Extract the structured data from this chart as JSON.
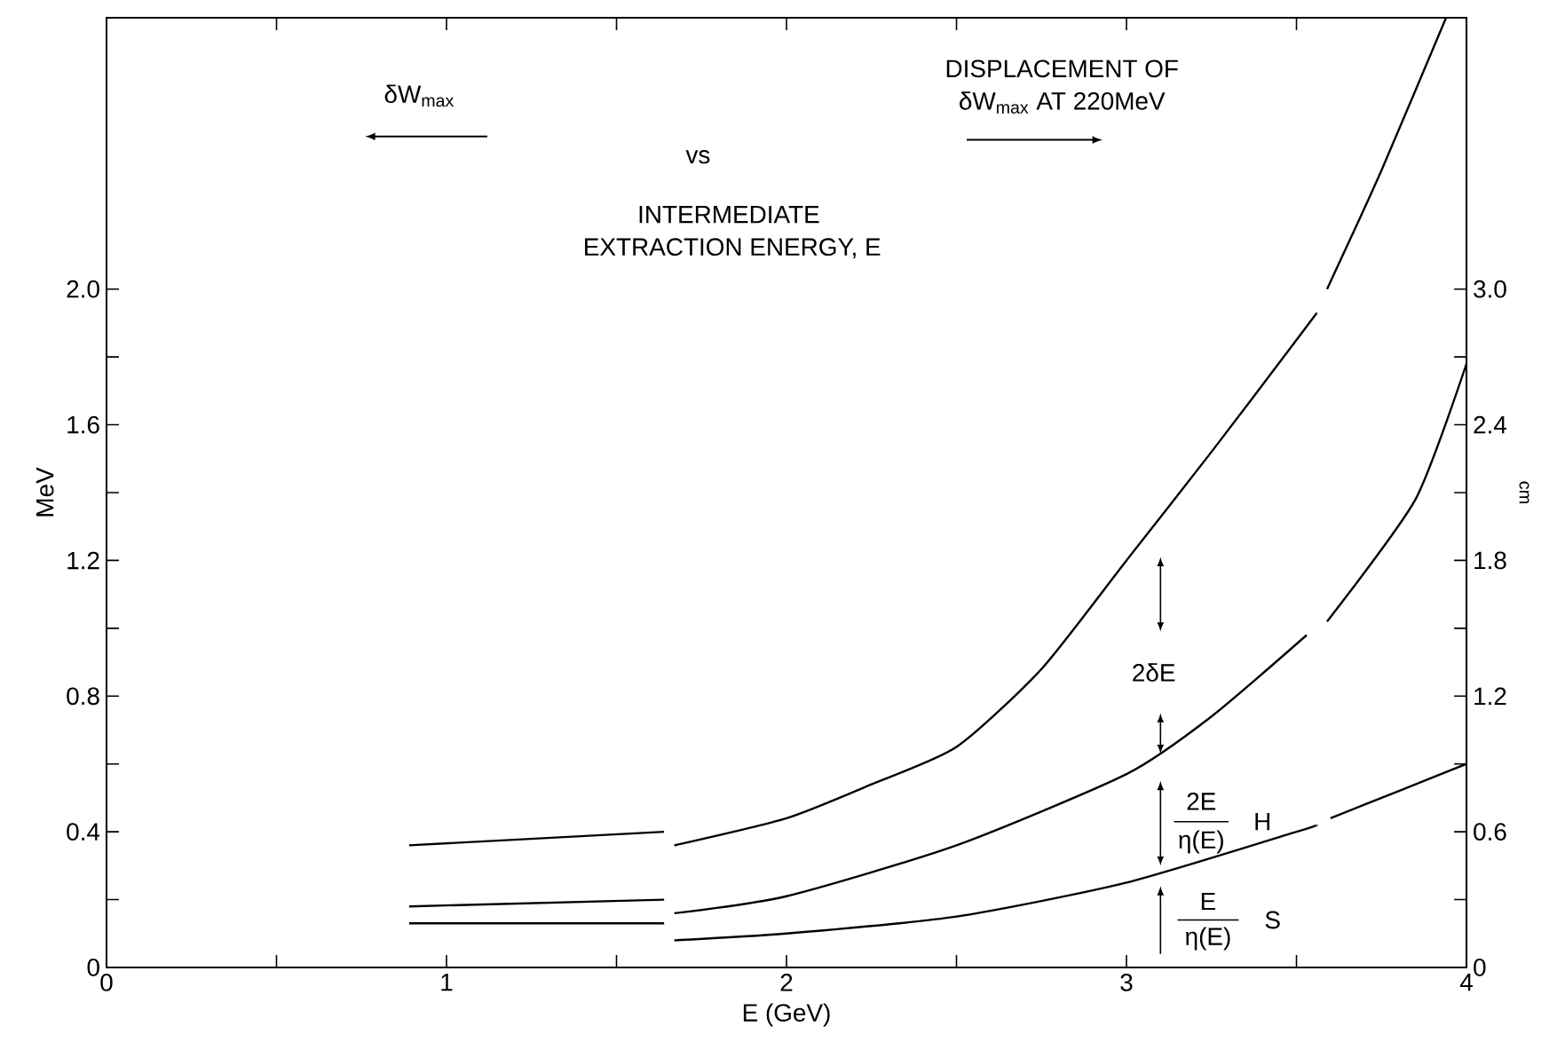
{
  "chart_data": {
    "type": "line",
    "xlabel": "E (GeV)",
    "ylabel": "MeV",
    "y2label": "cm",
    "xlim": [
      0,
      4
    ],
    "ylim": [
      0,
      2.8
    ],
    "y2lim": [
      0,
      4.2
    ],
    "xticks": [
      0,
      {
        "value": 0.5,
        "label": null
      },
      1,
      {
        "value": 1.5,
        "label": null
      },
      2,
      {
        "value": 2.5,
        "label": null
      },
      3,
      {
        "value": 3.5,
        "label": null
      },
      4
    ],
    "yticks": [
      0,
      {
        "value": 0.2,
        "label": null
      },
      0.4,
      {
        "value": 0.6,
        "label": null
      },
      0.8,
      {
        "value": 1.0,
        "label": null
      },
      1.2,
      {
        "value": 1.4,
        "label": null
      },
      1.6,
      {
        "value": 1.8,
        "label": null
      },
      {
        "value": 2,
        "label": "2.0"
      }
    ],
    "y2ticks": [
      0,
      {
        "value": 0.3,
        "label": null
      },
      0.6,
      {
        "value": 0.9,
        "label": null
      },
      1.2,
      {
        "value": 1.5,
        "label": null
      },
      1.8,
      {
        "value": 2.1,
        "label": null
      },
      2.4,
      {
        "value": 2.7,
        "label": null
      },
      {
        "value": 3,
        "label": "3.0"
      }
    ],
    "series": [
      {
        "color": "#000000",
        "x": [
          0.89,
          1.64,
          1.655,
          1.67,
          2.0,
          2.25,
          2.5,
          2.75,
          3.0,
          3.25,
          3.5,
          3.56,
          3.575,
          3.59,
          3.75,
          3.94
        ],
        "values": [
          0.36,
          0.4,
          null,
          0.36,
          0.44,
          0.54,
          0.65,
          0.88,
          1.2,
          1.52,
          1.85,
          1.93,
          null,
          2.0,
          2.35,
          2.8
        ]
      },
      {
        "color": "#000000",
        "x": [
          0.89,
          1.64,
          1.655,
          1.67,
          2.0,
          2.5,
          3.0,
          3.25,
          3.53,
          3.56,
          3.59,
          3.85,
          4.0
        ],
        "values": [
          0.18,
          0.2,
          null,
          0.16,
          0.21,
          0.36,
          0.57,
          0.74,
          0.98,
          null,
          1.02,
          1.38,
          1.78
        ]
      },
      {
        "color": "#000000",
        "x": [
          0.89,
          1.64,
          1.655,
          1.67,
          2.0,
          2.5,
          3.0,
          3.5,
          3.56,
          3.58,
          3.6,
          3.8,
          4.0
        ],
        "values": [
          0.13,
          0.13,
          null,
          0.08,
          0.1,
          0.15,
          0.25,
          0.4,
          0.42,
          null,
          0.44,
          0.52,
          0.6
        ]
      }
    ],
    "annotations": [
      "δW$_{max}$",
      "vs",
      "INTERMEDIATE",
      "EXTRACTION ENERGY, E",
      "DISPLACEMENT OF",
      "δW$_{max}$ AT 220MeV",
      "2δE",
      "2E",
      "η(E)",
      "H",
      "E",
      "η(E)",
      "S"
    ],
    "grid": false,
    "marker": "none",
    "line_style": "solid"
  }
}
